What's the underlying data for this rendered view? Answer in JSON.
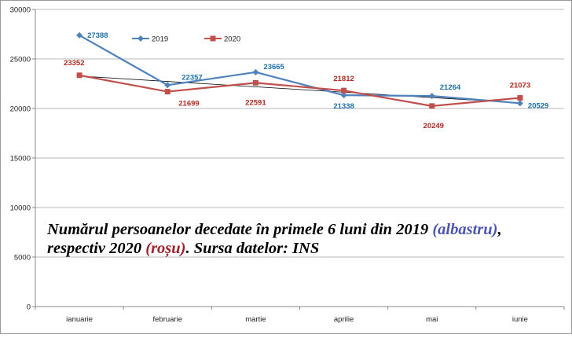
{
  "chart_data": {
    "type": "line",
    "categories": [
      "ianuarie",
      "februarie",
      "martie",
      "aprilie",
      "mai",
      "iunie"
    ],
    "ylim": [
      0,
      30000
    ],
    "yticks": [
      0,
      5000,
      10000,
      15000,
      20000,
      25000,
      30000
    ],
    "ytick_labels": [
      "0",
      "5000",
      "10000",
      "15000",
      "20000",
      "25000",
      "30000"
    ],
    "grid": "horizontal",
    "legend_position": "top",
    "series": [
      {
        "name": "2019",
        "color": "#4f81bd",
        "label_color": "#1f6fa8",
        "marker": "diamond",
        "values": [
          27388,
          22357,
          23665,
          21338,
          21264,
          20529
        ],
        "labels": [
          "27388",
          "22357",
          "23665",
          "21338",
          "21264",
          "20529"
        ]
      },
      {
        "name": "2020",
        "color": "#c0504d",
        "label_color": "#b02a22",
        "marker": "square",
        "values": [
          23352,
          21699,
          22591,
          21812,
          20249,
          21073
        ],
        "labels": [
          "23352",
          "21699",
          "22591",
          "21812",
          "20249",
          "21073"
        ]
      }
    ],
    "trendline": {
      "color": "#000000",
      "start": 23270,
      "end": 20560
    }
  },
  "caption": {
    "part1": "Numărul persoanelor decedate în primele 6 luni din 2019 ",
    "highlight1": "(albastru)",
    "part2": ",",
    "part3": "respectiv 2020 ",
    "highlight2": "(roșu)",
    "part4": ". Sursa datelor: INS"
  }
}
